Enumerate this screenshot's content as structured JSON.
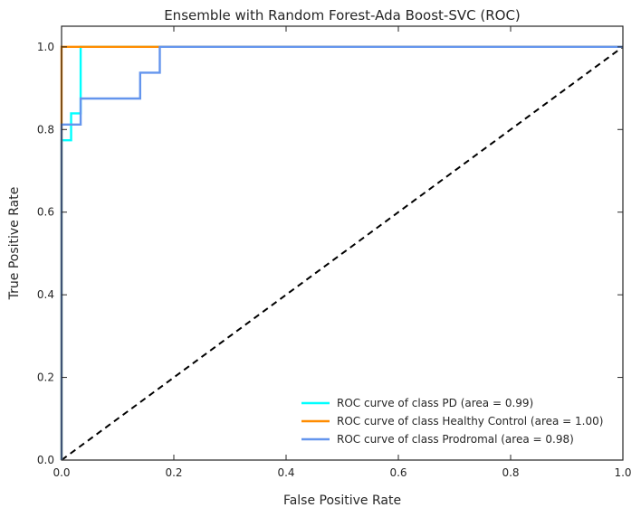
{
  "chart_data": {
    "type": "line",
    "title": "Ensemble with Random Forest-Ada Boost-SVC (ROC)",
    "xlabel": "False Positive Rate",
    "ylabel": "True Positive Rate",
    "xlim": [
      0.0,
      1.0
    ],
    "ylim": [
      0.0,
      1.05
    ],
    "x_ticks": [
      0.0,
      0.2,
      0.4,
      0.6,
      0.8,
      1.0
    ],
    "y_ticks": [
      0.0,
      0.2,
      0.4,
      0.6,
      0.8,
      1.0
    ],
    "x_tick_labels": [
      "0.0",
      "0.2",
      "0.4",
      "0.6",
      "0.8",
      "1.0"
    ],
    "y_tick_labels": [
      "0.0",
      "0.2",
      "0.4",
      "0.6",
      "0.8",
      "1.0"
    ],
    "grid": false,
    "legend_position": "lower-right",
    "series": [
      {
        "label": "ROC curve of class PD (area = 0.99)",
        "color": "#00ffff",
        "x": [
          0.0,
          0.0,
          0.017,
          0.017,
          0.034,
          0.034,
          1.0
        ],
        "y": [
          0.0,
          0.774,
          0.774,
          0.839,
          0.839,
          1.0,
          1.0
        ]
      },
      {
        "label": "ROC curve of class Healthy Control (area = 1.00)",
        "color": "#ff8c00",
        "x": [
          0.0,
          0.0,
          1.0
        ],
        "y": [
          0.0,
          1.0,
          1.0
        ]
      },
      {
        "label": "ROC curve of class Prodromal (area = 0.98)",
        "color": "#6495ed",
        "x": [
          0.0,
          0.0,
          0.034,
          0.034,
          0.14,
          0.14,
          0.175,
          0.175,
          1.0
        ],
        "y": [
          0.0,
          0.812,
          0.812,
          0.875,
          0.875,
          0.9375,
          0.9375,
          1.0,
          1.0
        ]
      }
    ],
    "reference_line": {
      "x": [
        0.0,
        1.0
      ],
      "y": [
        0.0,
        1.0
      ],
      "color": "#000000",
      "style": "dashed"
    }
  }
}
